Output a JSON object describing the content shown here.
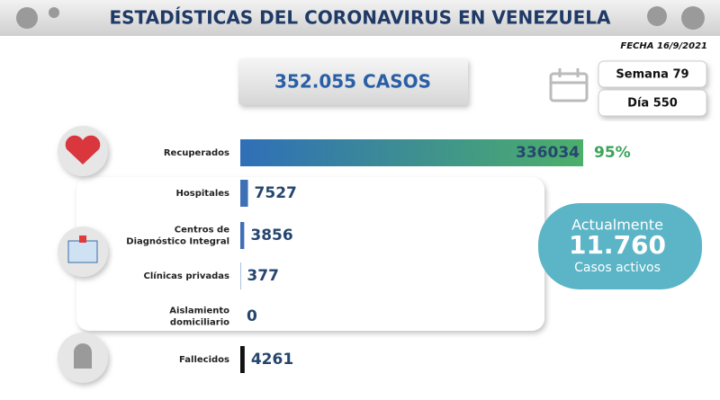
{
  "header": {
    "title": "ESTADÍSTICAS DEL CORONAVIRUS EN VENEZUELA",
    "date": "FECHA 16/9/2021"
  },
  "total": "352.055 CASOS",
  "week": "Semana 79",
  "day": "Día 550",
  "rows": [
    {
      "label": [
        "Recuperados"
      ],
      "value": 336034,
      "share": {
        "value": 95,
        "label": "95%"
      }
    },
    {
      "label": [
        "Hospitales"
      ],
      "value": 7527
    },
    {
      "label": [
        "Centros de",
        "Diagnóstico Integral"
      ],
      "value": 3856
    },
    {
      "label": [
        "Clínicas privadas"
      ],
      "value": 377
    },
    {
      "label": [
        "Aislamiento",
        "domiciliario"
      ],
      "value": 0
    },
    {
      "label": [
        "Fallecidos"
      ],
      "value": 4261
    }
  ],
  "active": {
    "heading": "Actualmente",
    "count": "11.760",
    "caption": "Casos activos"
  }
}
